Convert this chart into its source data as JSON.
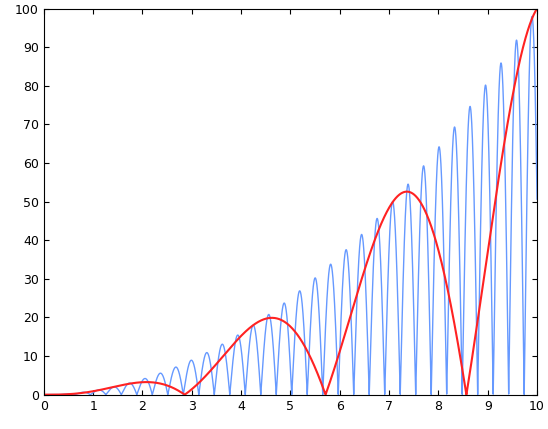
{
  "title": "",
  "xlim": [
    0,
    10
  ],
  "ylim": [
    0,
    100
  ],
  "xticks": [
    0,
    1,
    2,
    3,
    4,
    5,
    6,
    7,
    8,
    9,
    10
  ],
  "yticks": [
    0,
    10,
    20,
    30,
    40,
    50,
    60,
    70,
    80,
    90,
    100
  ],
  "blue_color": "#6699ff",
  "red_color": "#ff2222",
  "blue_omega": 10.0,
  "red_omega": 1.1,
  "linewidth_blue": 1.0,
  "linewidth_red": 1.5,
  "figsize": [
    5.48,
    4.29
  ],
  "dpi": 100,
  "background_color": "#ffffff",
  "num_points_blue": 20000,
  "num_points_red": 5000
}
